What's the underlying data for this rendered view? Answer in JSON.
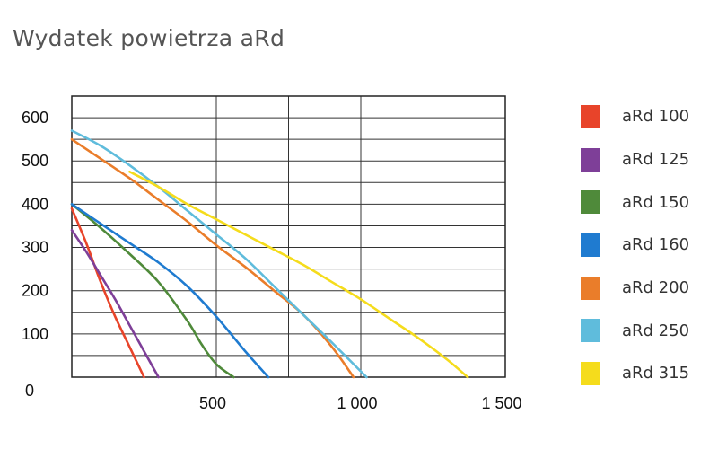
{
  "chart_data": {
    "type": "line",
    "title": "Wydatek powietrza aRd",
    "xlabel": "",
    "ylabel": "",
    "xlim": [
      0,
      1500
    ],
    "ylim": [
      0,
      650
    ],
    "x_ticks": [
      500,
      1000,
      1500
    ],
    "x_tick_labels": [
      "500",
      "1 000",
      "1 500"
    ],
    "y_ticks": [
      0,
      100,
      200,
      300,
      400,
      500,
      600
    ],
    "y_tick_labels": [
      "0",
      "100",
      "200",
      "300",
      "400",
      "500",
      "600"
    ],
    "grid": true,
    "legend_position": "right",
    "series": [
      {
        "name": "aRd 100",
        "color": "#e8442a",
        "x": [
          0,
          50,
          100,
          150,
          200,
          250
        ],
        "y": [
          390,
          310,
          220,
          140,
          70,
          0
        ]
      },
      {
        "name": "aRd 125",
        "color": "#7e3f98",
        "x": [
          0,
          50,
          100,
          150,
          200,
          250,
          300
        ],
        "y": [
          340,
          290,
          235,
          180,
          120,
          60,
          0
        ]
      },
      {
        "name": "aRd 150",
        "color": "#4f8a3a",
        "x": [
          0,
          100,
          200,
          300,
          400,
          450,
          500,
          560
        ],
        "y": [
          400,
          345,
          285,
          220,
          130,
          75,
          30,
          0
        ]
      },
      {
        "name": "aRd 160",
        "color": "#1f7bd0",
        "x": [
          0,
          100,
          200,
          300,
          400,
          500,
          600,
          680
        ],
        "y": [
          400,
          355,
          310,
          265,
          210,
          140,
          60,
          0
        ]
      },
      {
        "name": "aRd 200",
        "color": "#ea7d2a",
        "x": [
          0,
          100,
          200,
          300,
          400,
          500,
          600,
          700,
          800,
          900,
          975
        ],
        "y": [
          550,
          505,
          460,
          410,
          360,
          305,
          255,
          200,
          145,
          70,
          0
        ]
      },
      {
        "name": "aRd 250",
        "color": "#5fbcdc",
        "x": [
          0,
          100,
          200,
          300,
          400,
          500,
          600,
          700,
          800,
          900,
          1020
        ],
        "y": [
          570,
          535,
          490,
          440,
          385,
          330,
          275,
          210,
          145,
          80,
          0
        ]
      },
      {
        "name": "aRd 315",
        "color": "#f5dc1c",
        "x": [
          200,
          300,
          400,
          500,
          600,
          700,
          800,
          900,
          1000,
          1100,
          1200,
          1300,
          1370
        ],
        "y": [
          475,
          440,
          400,
          365,
          330,
          295,
          260,
          220,
          180,
          135,
          90,
          40,
          0
        ]
      }
    ]
  }
}
